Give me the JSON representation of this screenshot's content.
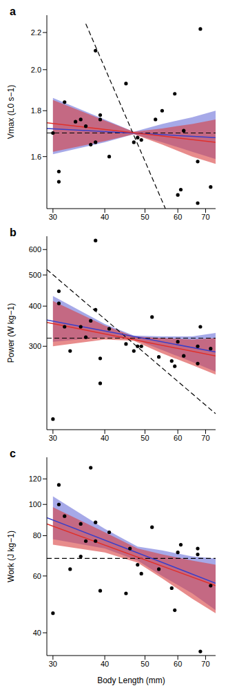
{
  "chart_data": [
    {
      "type": "scatter",
      "panel": "a",
      "ylabel": "Vmax (L0 s−1)",
      "log": true,
      "xlim": [
        29,
        74
      ],
      "xticks": [
        30,
        40,
        50,
        60,
        70
      ],
      "ylim": [
        1.4,
        2.3
      ],
      "yticks": [
        1.6,
        1.8,
        {
          "value": 2,
          "label": "2.0"
        },
        2.2
      ],
      "series": [
        {
          "type": "band",
          "color": "#6b6fd8",
          "x": [
            30,
            40,
            47,
            55,
            65,
            74
          ],
          "lower": [
            1.61,
            1.66,
            1.695,
            1.66,
            1.62,
            1.59
          ],
          "upper": [
            1.86,
            1.76,
            1.705,
            1.74,
            1.77,
            1.8
          ]
        },
        {
          "type": "band",
          "color": "#d94040",
          "x": [
            30,
            40,
            47,
            55,
            65,
            74
          ],
          "lower": [
            1.62,
            1.665,
            1.695,
            1.65,
            1.6,
            1.57
          ],
          "upper": [
            1.85,
            1.755,
            1.705,
            1.72,
            1.74,
            1.76
          ]
        },
        {
          "type": "line",
          "color": "#000000",
          "line_style": "dashed",
          "x": [
            29,
            74
          ],
          "values": [
            1.7,
            1.7
          ]
        },
        {
          "type": "line",
          "color": "#000000",
          "line_style": "dashed",
          "x": [
            36,
            56
          ],
          "values": [
            2.25,
            1.4
          ]
        },
        {
          "type": "line",
          "color": "#3a3fc8",
          "line_style": "solid",
          "x": [
            29,
            74
          ],
          "values": [
            1.72,
            1.68
          ]
        },
        {
          "type": "line",
          "color": "#e0302a",
          "line_style": "solid",
          "x": [
            29,
            74
          ],
          "values": [
            1.745,
            1.66
          ]
        },
        {
          "type": "scatter",
          "color": "#000000",
          "marker": "circle",
          "x": [
            30,
            31,
            31,
            32,
            34,
            35,
            36,
            37,
            38,
            38,
            39,
            39,
            41,
            45,
            47,
            48,
            49,
            53,
            55,
            59,
            60,
            61,
            62,
            67,
            67,
            68,
            72
          ],
          "values": [
            1.7,
            1.54,
            1.5,
            1.84,
            1.75,
            1.76,
            1.73,
            1.65,
            2.1,
            1.66,
            1.78,
            1.76,
            1.6,
            1.93,
            1.66,
            1.68,
            1.67,
            1.76,
            1.8,
            1.88,
            1.45,
            1.47,
            1.71,
            1.58,
            1.42,
            2.22,
            1.48
          ]
        }
      ]
    },
    {
      "type": "scatter",
      "panel": "b",
      "ylabel": "Power (W kg−1)",
      "log": true,
      "xlim": [
        29,
        74
      ],
      "xticks": [
        30,
        40,
        50,
        60,
        70
      ],
      "ylim": [
        165,
        660
      ],
      "yticks": [
        300,
        400,
        500,
        600
      ],
      "series": [
        {
          "type": "band",
          "color": "#6b6fd8",
          "x": [
            30,
            40,
            47,
            55,
            65,
            74
          ],
          "lower": [
            310,
            320,
            316,
            292,
            268,
            250
          ],
          "upper": [
            430,
            352,
            324,
            322,
            322,
            330
          ]
        },
        {
          "type": "band",
          "color": "#d94040",
          "x": [
            30,
            40,
            47,
            55,
            65,
            74
          ],
          "lower": [
            300,
            315,
            312,
            285,
            262,
            245
          ],
          "upper": [
            415,
            348,
            322,
            318,
            315,
            318
          ]
        },
        {
          "type": "line",
          "color": "#000000",
          "line_style": "dashed",
          "x": [
            29,
            74
          ],
          "values": [
            318,
            318
          ]
        },
        {
          "type": "line",
          "color": "#000000",
          "line_style": "dashed",
          "x": [
            29,
            74
          ],
          "values": [
            520,
            185
          ]
        },
        {
          "type": "line",
          "color": "#3a3fc8",
          "line_style": "solid",
          "x": [
            29,
            74
          ],
          "values": [
            362,
            288
          ]
        },
        {
          "type": "line",
          "color": "#e0302a",
          "line_style": "solid",
          "x": [
            29,
            74
          ],
          "values": [
            356,
            280
          ]
        },
        {
          "type": "scatter",
          "color": "#000000",
          "marker": "circle",
          "x": [
            30,
            31,
            31,
            32,
            33,
            35,
            36,
            37,
            38,
            38,
            39,
            39,
            41,
            45,
            47,
            48,
            49,
            52,
            54,
            58,
            59,
            60,
            62,
            67,
            67,
            68,
            72
          ],
          "values": [
            178,
            445,
            408,
            345,
            290,
            345,
            320,
            360,
            640,
            390,
            275,
            230,
            340,
            305,
            290,
            300,
            300,
            370,
            278,
            270,
            260,
            310,
            280,
            265,
            300,
            345,
            295
          ]
        }
      ]
    },
    {
      "type": "scatter",
      "panel": "c",
      "ylabel": "Work (J kg−1)",
      "xlabel": "Body Length (mm)",
      "log": true,
      "xlim": [
        29,
        74
      ],
      "xticks": [
        30,
        40,
        50,
        60,
        70
      ],
      "ylim": [
        34,
        140
      ],
      "yticks": [
        40,
        60,
        80,
        100,
        120
      ],
      "series": [
        {
          "type": "band",
          "color": "#6b6fd8",
          "x": [
            30,
            40,
            48,
            55,
            65,
            74
          ],
          "lower": [
            78,
            73,
            67,
            60,
            53,
            47
          ],
          "upper": [
            106,
            84,
            74,
            72,
            69,
            68
          ]
        },
        {
          "type": "band",
          "color": "#d94040",
          "x": [
            30,
            40,
            48,
            55,
            65,
            74
          ],
          "lower": [
            75,
            71,
            66,
            59,
            51,
            46
          ],
          "upper": [
            98,
            82,
            73,
            70,
            67,
            65
          ]
        },
        {
          "type": "line",
          "color": "#000000",
          "line_style": "dashed",
          "x": [
            29,
            74
          ],
          "values": [
            68,
            68
          ]
        },
        {
          "type": "line",
          "color": "#3a3fc8",
          "line_style": "solid",
          "x": [
            29,
            74
          ],
          "values": [
            91,
            57
          ]
        },
        {
          "type": "line",
          "color": "#e0302a",
          "line_style": "solid",
          "x": [
            29,
            74
          ],
          "values": [
            87,
            56
          ]
        },
        {
          "type": "scatter",
          "color": "#000000",
          "marker": "circle",
          "x": [
            30,
            31,
            31,
            32,
            33,
            35,
            35,
            36,
            37,
            38,
            38,
            39,
            41,
            45,
            46,
            48,
            49,
            52,
            54,
            58,
            59,
            60,
            61,
            67,
            67,
            68,
            72
          ],
          "values": [
            46,
            115,
            100,
            92,
            63,
            87,
            69,
            77,
            130,
            88,
            77,
            54,
            82,
            53,
            73,
            65,
            61,
            85,
            63,
            55,
            47,
            71,
            75,
            70,
            73,
            35,
            56
          ]
        }
      ]
    }
  ]
}
